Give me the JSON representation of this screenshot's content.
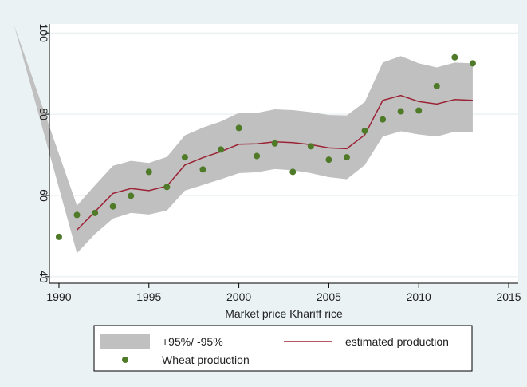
{
  "chart_data": {
    "type": "line",
    "x_label": "Market price Khariff rice",
    "xlim": [
      1989.47,
      2015.53
    ],
    "ylim": [
      38.4,
      102.2
    ],
    "xticks": [
      1990,
      1995,
      2000,
      2005,
      2010,
      2015
    ],
    "yticks": [
      40,
      60,
      80,
      100
    ],
    "grid": true,
    "series": [
      {
        "name": "+95%/ -95%",
        "kind": "band",
        "color": "#c0c0c0",
        "x": [
          1987.5,
          1991,
          1992,
          1993,
          1994,
          1995,
          1996,
          1997,
          1998,
          1999,
          2000,
          2001,
          2002,
          2003,
          2004,
          2005,
          2006,
          2007,
          2008,
          2009,
          2010,
          2011,
          2012,
          2013
        ],
        "upper": [
          102,
          57.5,
          62.5,
          67.3,
          68.5,
          68,
          69.5,
          74.8,
          76.7,
          78.2,
          80.3,
          80.3,
          81.2,
          81,
          80.5,
          79.8,
          79.7,
          83,
          92.7,
          94.3,
          92.5,
          91.5,
          92.7,
          92.5
        ],
        "lower": [
          102,
          45.8,
          50.5,
          54.3,
          55.7,
          55.3,
          56.3,
          61.2,
          62.6,
          64,
          65.5,
          65.7,
          66.5,
          66.2,
          65.5,
          64.5,
          64,
          67.5,
          74.5,
          75.8,
          75,
          74.5,
          75.7,
          75.5
        ]
      },
      {
        "name": "estimated production",
        "kind": "line",
        "color": "#9b2335",
        "x": [
          1991,
          1992,
          1993,
          1994,
          1995,
          1996,
          1997,
          1998,
          1999,
          2000,
          2001,
          2002,
          2003,
          2004,
          2005,
          2006,
          2007,
          2008,
          2009,
          2010,
          2011,
          2012,
          2013
        ],
        "values": [
          51.5,
          56,
          60.5,
          61.7,
          61.2,
          62.3,
          67.5,
          69.3,
          70.8,
          72.6,
          72.7,
          73.2,
          73.0,
          72.5,
          71.7,
          71.5,
          74.9,
          83.4,
          84.6,
          83.1,
          82.5,
          83.6,
          83.4
        ]
      },
      {
        "name": "Wheat production",
        "kind": "scatter",
        "color": "#4f7a28",
        "x": [
          1990,
          1991,
          1992,
          1993,
          1994,
          1995,
          1996,
          1997,
          1998,
          1999,
          2000,
          2001,
          2002,
          2003,
          2004,
          2005,
          2006,
          2007,
          2008,
          2009,
          2010,
          2011,
          2012,
          2013
        ],
        "values": [
          49.8,
          55.2,
          55.7,
          57.3,
          59.9,
          65.8,
          62.1,
          69.4,
          66.4,
          71.3,
          76.6,
          69.7,
          72.8,
          65.8,
          72.1,
          68.8,
          69.4,
          75.9,
          78.7,
          80.7,
          80.9,
          86.9,
          94.0,
          92.5
        ]
      }
    ]
  }
}
